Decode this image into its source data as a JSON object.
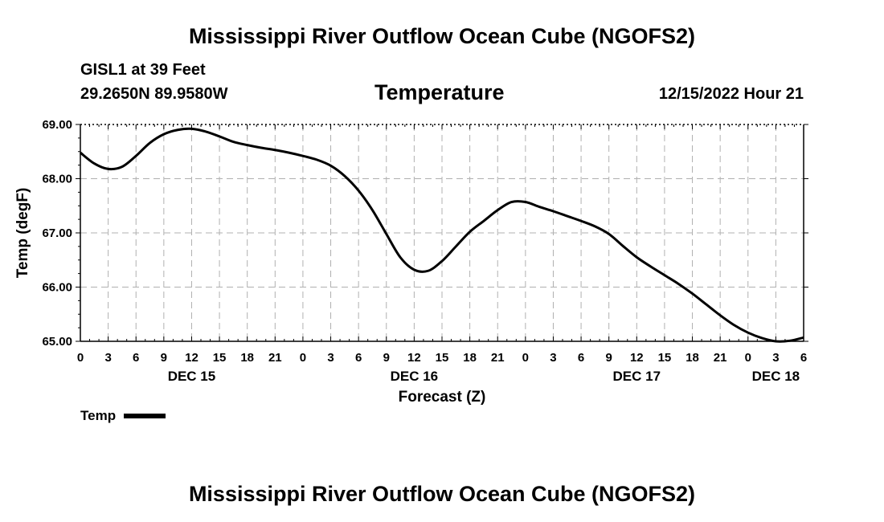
{
  "header": {
    "title": "Mississippi River Outflow Ocean Cube (NGOFS2)",
    "station": "GISL1 at 39 Feet",
    "coords": "29.2650N  89.9580W",
    "chart_title": "Temperature",
    "datetime": "12/15/2022 Hour 21"
  },
  "footer": {
    "title": "Mississippi River Outflow Ocean Cube (NGOFS2)"
  },
  "legend": {
    "label": "Temp",
    "color": "#000000"
  },
  "chart_data": {
    "type": "line",
    "title": "Temperature",
    "xlabel": "Forecast (Z)",
    "ylabel": "Temp (degF)",
    "xlim": [
      0,
      78
    ],
    "ylim": [
      65.0,
      69.0
    ],
    "y_ticks": [
      "65.00",
      "66.00",
      "67.00",
      "68.00",
      "69.00"
    ],
    "x_tick_hours": [
      0,
      3,
      6,
      9,
      12,
      15,
      18,
      21,
      24,
      27,
      30,
      33,
      36,
      39,
      42,
      45,
      48,
      51,
      54,
      57,
      60,
      63,
      66,
      69,
      72,
      75,
      78
    ],
    "x_tick_labels": [
      "0",
      "3",
      "6",
      "9",
      "12",
      "15",
      "18",
      "21",
      "0",
      "3",
      "6",
      "9",
      "12",
      "15",
      "18",
      "21",
      "0",
      "3",
      "6",
      "9",
      "12",
      "15",
      "18",
      "21",
      "0",
      "3",
      "6"
    ],
    "date_labels": [
      {
        "hour": 12,
        "text": "DEC 15"
      },
      {
        "hour": 36,
        "text": "DEC 16"
      },
      {
        "hour": 60,
        "text": "DEC 17"
      },
      {
        "hour": 75,
        "text": "DEC 18"
      }
    ],
    "grid": true,
    "series": [
      {
        "name": "Temp",
        "color": "#000000",
        "x": [
          0,
          1.5,
          3,
          4.5,
          6,
          7.5,
          9,
          10.5,
          12,
          13.5,
          15,
          16.5,
          18,
          19.5,
          21,
          22.5,
          24,
          25.5,
          27,
          28.5,
          30,
          31.5,
          33,
          34.5,
          36,
          37.5,
          39,
          40.5,
          42,
          43.5,
          45,
          46.5,
          48,
          49.5,
          51,
          52.5,
          54,
          55.5,
          57,
          58.5,
          60,
          61.5,
          63,
          64.5,
          66,
          67.5,
          69,
          70.5,
          72,
          73.5,
          75,
          76.5,
          78
        ],
        "values": [
          68.48,
          68.28,
          68.18,
          68.22,
          68.42,
          68.66,
          68.82,
          68.9,
          68.92,
          68.87,
          68.78,
          68.68,
          68.62,
          68.57,
          68.53,
          68.48,
          68.42,
          68.35,
          68.24,
          68.05,
          67.78,
          67.42,
          66.98,
          66.55,
          66.32,
          66.3,
          66.48,
          66.75,
          67.02,
          67.22,
          67.42,
          67.57,
          67.57,
          67.48,
          67.4,
          67.31,
          67.22,
          67.12,
          66.98,
          66.76,
          66.55,
          66.38,
          66.22,
          66.06,
          65.88,
          65.68,
          65.48,
          65.3,
          65.16,
          65.06,
          65.0,
          65.01,
          65.07
        ]
      }
    ]
  }
}
